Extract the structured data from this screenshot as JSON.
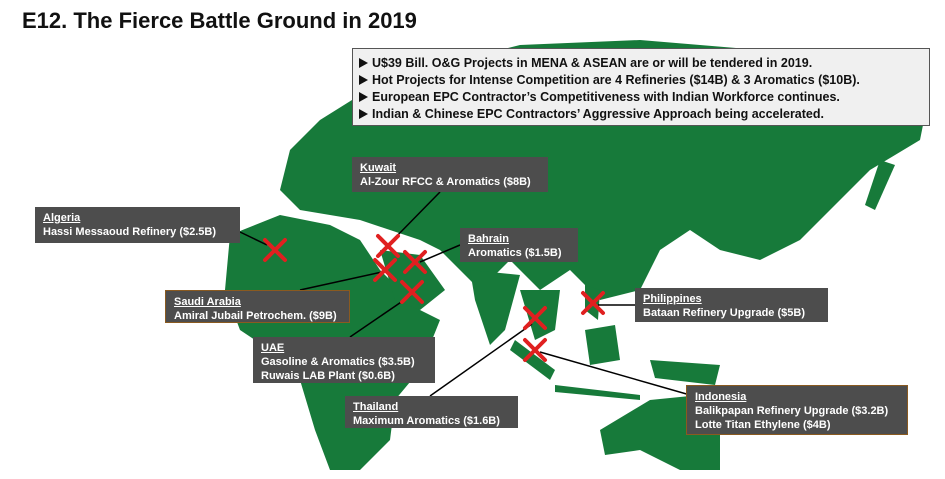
{
  "title": "E12. The Fierce Battle Ground in 2019",
  "bullets": [
    "U$39 Bill. O&G Projects in MENA & ASEAN are or will be tendered in 2019.",
    "Hot Projects for Intense Competition are 4 Refineries ($14B) & 3 Aromatics ($10B).",
    "European EPC Contractor’s Competitiveness with Indian Workforce continues.",
    "Indian & Chinese EPC Contractors’ Aggressive Approach being accelerated."
  ],
  "callouts": [
    {
      "country": "Kuwait",
      "projects": [
        "Al-Zour RFCC & Aromatics ($8B)"
      ]
    },
    {
      "country": "Algeria",
      "projects": [
        "Hassi Messaoud Refinery ($2.5B)"
      ]
    },
    {
      "country": "Bahrain",
      "projects": [
        "Aromatics ($1.5B)"
      ]
    },
    {
      "country": "Saudi Arabia",
      "projects": [
        "Amiral Jubail Petrochem. ($9B)"
      ]
    },
    {
      "country": "UAE",
      "projects": [
        "Gasoline & Aromatics ($3.5B)",
        "Ruwais LAB Plant ($0.6B)"
      ]
    },
    {
      "country": "Thailand",
      "projects": [
        "Maximum Aromatics ($1.6B)"
      ]
    },
    {
      "country": "Philippines",
      "projects": [
        "Bataan Refinery Upgrade ($5B)"
      ]
    },
    {
      "country": "Indonesia",
      "projects": [
        "Balikpapan Refinery Upgrade ($3.2B)",
        "Lotte Titan Ethylene ($4B)"
      ]
    }
  ]
}
